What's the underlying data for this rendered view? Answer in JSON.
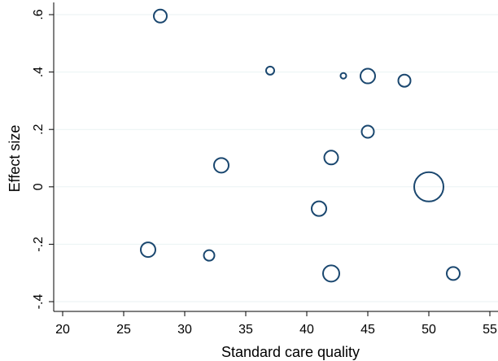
{
  "chart_data": {
    "type": "scatter",
    "title": "",
    "xlabel": "Standard care quality",
    "ylabel": "Effect size",
    "xlim": [
      20,
      55
    ],
    "ylim": [
      -0.4,
      0.6
    ],
    "x_ticks": [
      20,
      25,
      30,
      35,
      40,
      45,
      50,
      55
    ],
    "x_tick_labels": [
      "20",
      "25",
      "30",
      "35",
      "40",
      "45",
      "50",
      "55"
    ],
    "y_ticks": [
      -0.4,
      -0.2,
      0,
      0.2,
      0.4,
      0.6
    ],
    "y_tick_labels": [
      "-.4",
      "-.2",
      "0",
      ".2",
      ".4",
      ".6"
    ],
    "grid": "horizontal",
    "marker": "hollow circle, size proportional to weight",
    "color": "#1a476f",
    "points": [
      {
        "x": 28,
        "y": 0.595,
        "weight": 8
      },
      {
        "x": 37,
        "y": 0.405,
        "weight": 5
      },
      {
        "x": 43,
        "y": 0.387,
        "weight": 3.5
      },
      {
        "x": 45,
        "y": 0.386,
        "weight": 9
      },
      {
        "x": 48,
        "y": 0.37,
        "weight": 7.5
      },
      {
        "x": 45,
        "y": 0.192,
        "weight": 7.5
      },
      {
        "x": 42,
        "y": 0.102,
        "weight": 8.5
      },
      {
        "x": 33,
        "y": 0.075,
        "weight": 9
      },
      {
        "x": 50,
        "y": 0.0,
        "weight": 18
      },
      {
        "x": 41,
        "y": -0.076,
        "weight": 9
      },
      {
        "x": 27,
        "y": -0.219,
        "weight": 9
      },
      {
        "x": 32,
        "y": -0.239,
        "weight": 6.5
      },
      {
        "x": 42,
        "y": -0.302,
        "weight": 10
      },
      {
        "x": 52,
        "y": -0.302,
        "weight": 8
      }
    ]
  }
}
